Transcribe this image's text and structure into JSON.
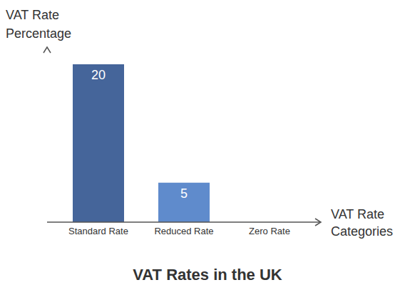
{
  "chart_data": {
    "type": "bar",
    "title": "VAT Rates in the UK",
    "x_label": "VAT Rate Categories",
    "y_label": "VAT Rate Percentage",
    "categories": [
      "Standard Rate",
      "Reduced Rate",
      "Zero Rate"
    ],
    "values": [
      20,
      5,
      0
    ],
    "value_labels": [
      "20",
      "5",
      null
    ],
    "colors": [
      "#45659a",
      "#5f8bcc",
      "#3d5a80"
    ],
    "ylim": [
      0,
      22
    ],
    "data_labels": true,
    "tick_labels": "x",
    "grid": false
  }
}
